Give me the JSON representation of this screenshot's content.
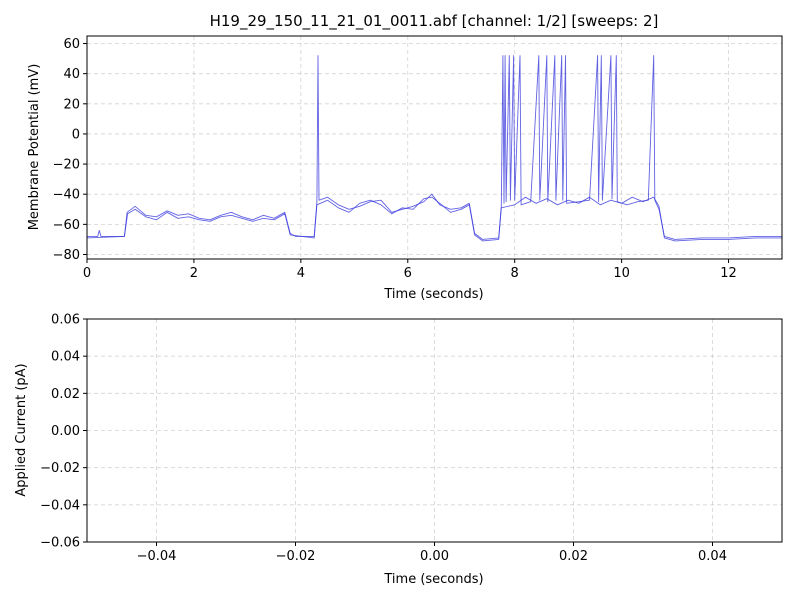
{
  "chart_data": [
    {
      "type": "line",
      "title": "H19_29_150_11_21_01_0011.abf [channel: 1/2] [sweeps: 2]",
      "xlabel": "Time (seconds)",
      "ylabel": "Membrane Potential (mV)",
      "xlim": [
        0,
        13
      ],
      "ylim": [
        -83,
        65
      ],
      "xticks": [
        0,
        2,
        4,
        6,
        8,
        10,
        12
      ],
      "xtick_labels": [
        "0",
        "2",
        "4",
        "6",
        "8",
        "10",
        "12"
      ],
      "yticks": [
        -80,
        -60,
        -40,
        -20,
        0,
        20,
        40,
        60
      ],
      "ytick_labels": [
        "−80",
        "−60",
        "−40",
        "−20",
        "0",
        "20",
        "40",
        "60"
      ],
      "grid": true,
      "line_color": "#3b3bdd",
      "series": [
        {
          "points": [
            [
              0,
              -68
            ],
            [
              0.2,
              -68
            ],
            [
              0.23,
              -64
            ],
            [
              0.26,
              -68
            ],
            [
              0.7,
              -68
            ],
            [
              0.75,
              -52
            ],
            [
              0.9,
              -48
            ],
            [
              1.1,
              -54
            ],
            [
              1.3,
              -55
            ],
            [
              1.5,
              -51
            ],
            [
              1.7,
              -54
            ],
            [
              1.9,
              -53
            ],
            [
              2.1,
              -56
            ],
            [
              2.3,
              -57
            ],
            [
              2.5,
              -54
            ],
            [
              2.7,
              -52
            ],
            [
              2.9,
              -55
            ],
            [
              3.1,
              -57
            ],
            [
              3.3,
              -54
            ],
            [
              3.5,
              -56
            ],
            [
              3.7,
              -52
            ],
            [
              3.8,
              -66
            ],
            [
              3.9,
              -68
            ],
            [
              4.25,
              -68
            ],
            [
              4.3,
              -45
            ],
            [
              4.32,
              52
            ],
            [
              4.34,
              -44
            ],
            [
              4.5,
              -42
            ],
            [
              4.7,
              -47
            ],
            [
              4.9,
              -50
            ],
            [
              5.1,
              -48
            ],
            [
              5.3,
              -45
            ],
            [
              5.5,
              -44
            ],
            [
              5.7,
              -52
            ],
            [
              5.9,
              -50
            ],
            [
              6.1,
              -48
            ],
            [
              6.3,
              -45
            ],
            [
              6.45,
              -40
            ],
            [
              6.6,
              -47
            ],
            [
              6.8,
              -50
            ],
            [
              7.0,
              -49
            ],
            [
              7.15,
              -46
            ],
            [
              7.25,
              -66
            ],
            [
              7.4,
              -70
            ],
            [
              7.7,
              -69
            ],
            [
              7.75,
              -48
            ],
            [
              7.78,
              52
            ],
            [
              7.8,
              -46
            ],
            [
              7.82,
              52
            ],
            [
              7.84,
              -45
            ],
            [
              7.9,
              52
            ],
            [
              7.92,
              -44
            ],
            [
              7.98,
              52
            ],
            [
              8.0,
              -44
            ],
            [
              8.1,
              52
            ],
            [
              8.12,
              -47
            ],
            [
              8.3,
              -45
            ],
            [
              8.45,
              52
            ],
            [
              8.47,
              -44
            ],
            [
              8.6,
              52
            ],
            [
              8.62,
              -45
            ],
            [
              8.75,
              52
            ],
            [
              8.77,
              -44
            ],
            [
              8.88,
              52
            ],
            [
              8.9,
              -44
            ],
            [
              8.95,
              52
            ],
            [
              8.97,
              -46
            ],
            [
              9.2,
              -45
            ],
            [
              9.4,
              -44
            ],
            [
              9.55,
              52
            ],
            [
              9.57,
              -45
            ],
            [
              9.62,
              52
            ],
            [
              9.64,
              -44
            ],
            [
              9.8,
              52
            ],
            [
              9.82,
              -43
            ],
            [
              9.9,
              52
            ],
            [
              9.92,
              -45
            ],
            [
              10.1,
              -47
            ],
            [
              10.3,
              -45
            ],
            [
              10.5,
              -44
            ],
            [
              10.6,
              52
            ],
            [
              10.62,
              -44
            ],
            [
              10.7,
              -50
            ],
            [
              10.8,
              -68
            ],
            [
              11,
              -70
            ],
            [
              11.5,
              -69
            ],
            [
              12,
              -69
            ],
            [
              12.5,
              -68
            ],
            [
              13,
              -68
            ]
          ]
        },
        {
          "points": [
            [
              0,
              -69
            ],
            [
              0.7,
              -68
            ],
            [
              0.76,
              -53
            ],
            [
              0.9,
              -50
            ],
            [
              1.1,
              -55
            ],
            [
              1.3,
              -57
            ],
            [
              1.5,
              -52
            ],
            [
              1.7,
              -56
            ],
            [
              1.9,
              -55
            ],
            [
              2.1,
              -57
            ],
            [
              2.3,
              -58
            ],
            [
              2.5,
              -55
            ],
            [
              2.7,
              -54
            ],
            [
              2.9,
              -56
            ],
            [
              3.1,
              -58
            ],
            [
              3.3,
              -56
            ],
            [
              3.5,
              -57
            ],
            [
              3.7,
              -53
            ],
            [
              3.8,
              -67
            ],
            [
              4.25,
              -69
            ],
            [
              4.3,
              -47
            ],
            [
              4.5,
              -44
            ],
            [
              4.7,
              -49
            ],
            [
              4.9,
              -52
            ],
            [
              5.1,
              -46
            ],
            [
              5.3,
              -44
            ],
            [
              5.5,
              -47
            ],
            [
              5.7,
              -53
            ],
            [
              5.9,
              -49
            ],
            [
              6.1,
              -50
            ],
            [
              6.3,
              -43
            ],
            [
              6.45,
              -42
            ],
            [
              6.6,
              -46
            ],
            [
              6.8,
              -52
            ],
            [
              7.0,
              -50
            ],
            [
              7.15,
              -47
            ],
            [
              7.25,
              -67
            ],
            [
              7.4,
              -71
            ],
            [
              7.7,
              -70
            ],
            [
              7.75,
              -49
            ],
            [
              8.0,
              -47
            ],
            [
              8.2,
              -42
            ],
            [
              8.4,
              -46
            ],
            [
              8.6,
              -43
            ],
            [
              8.8,
              -47
            ],
            [
              9.0,
              -44
            ],
            [
              9.2,
              -46
            ],
            [
              9.4,
              -42
            ],
            [
              9.6,
              -47
            ],
            [
              9.8,
              -44
            ],
            [
              10.0,
              -46
            ],
            [
              10.2,
              -42
            ],
            [
              10.4,
              -45
            ],
            [
              10.6,
              -42
            ],
            [
              10.7,
              -48
            ],
            [
              10.8,
              -69
            ],
            [
              11,
              -71
            ],
            [
              11.5,
              -70
            ],
            [
              12,
              -70
            ],
            [
              12.5,
              -69
            ],
            [
              13,
              -69
            ]
          ]
        }
      ]
    },
    {
      "type": "line",
      "title": "",
      "xlabel": "Time (seconds)",
      "ylabel": "Applied Current (pA)",
      "xlim": [
        -0.05,
        0.05
      ],
      "ylim": [
        -0.06,
        0.06
      ],
      "xticks": [
        -0.04,
        -0.02,
        0.0,
        0.02,
        0.04
      ],
      "xtick_labels": [
        "−0.04",
        "−0.02",
        "0.00",
        "0.02",
        "0.04"
      ],
      "yticks": [
        -0.06,
        -0.04,
        -0.02,
        0.0,
        0.02,
        0.04,
        0.06
      ],
      "ytick_labels": [
        "−0.06",
        "−0.04",
        "−0.02",
        "0.00",
        "0.02",
        "0.04",
        "0.06"
      ],
      "grid": true,
      "series": []
    }
  ]
}
